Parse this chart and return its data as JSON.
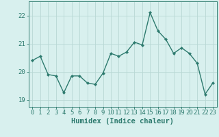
{
  "x": [
    0,
    1,
    2,
    3,
    4,
    5,
    6,
    7,
    8,
    9,
    10,
    11,
    12,
    13,
    14,
    15,
    16,
    17,
    18,
    19,
    20,
    21,
    22,
    23
  ],
  "y": [
    20.4,
    20.55,
    19.9,
    19.85,
    19.25,
    19.85,
    19.85,
    19.6,
    19.55,
    19.95,
    20.65,
    20.55,
    20.7,
    21.05,
    20.95,
    22.1,
    21.45,
    21.15,
    20.65,
    20.85,
    20.65,
    20.3,
    19.2,
    19.6
  ],
  "line_color": "#2d7a6e",
  "marker": "D",
  "marker_size": 2.2,
  "linewidth": 1.0,
  "ylim": [
    18.75,
    22.5
  ],
  "yticks": [
    19,
    20,
    21,
    22
  ],
  "xticks": [
    0,
    1,
    2,
    3,
    4,
    5,
    6,
    7,
    8,
    9,
    10,
    11,
    12,
    13,
    14,
    15,
    16,
    17,
    18,
    19,
    20,
    21,
    22,
    23
  ],
  "xlabel": "Humidex (Indice chaleur)",
  "xlabel_fontsize": 7.5,
  "tick_fontsize": 6.5,
  "background_color": "#d8f0ee",
  "grid_color": "#b8d8d4",
  "axis_color": "#2d7a6e",
  "tick_color": "#2d7a6e"
}
